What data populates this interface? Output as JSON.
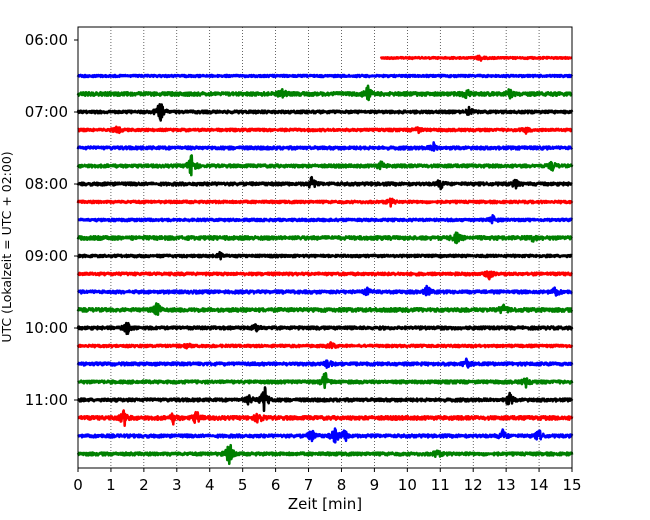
{
  "chart_data": {
    "type": "line",
    "subtype": "helicorder",
    "xlabel": "Zeit  [min]",
    "ylabel": "UTC (Lokalzeit = UTC + 02:00)",
    "xlim": [
      0,
      15
    ],
    "x_ticks": [
      0,
      1,
      2,
      3,
      4,
      5,
      6,
      7,
      8,
      9,
      10,
      11,
      12,
      13,
      14,
      15
    ],
    "x_tick_labels": [
      "0",
      "1",
      "2",
      "3",
      "4",
      "5",
      "6",
      "7",
      "8",
      "9",
      "10",
      "11",
      "12",
      "13",
      "14",
      "15"
    ],
    "y_tick_labels": [
      "06:00",
      "07:00",
      "08:00",
      "09:00",
      "10:00",
      "11:00"
    ],
    "vertical_grid": true,
    "grid_style": "dotted",
    "trace_color_cycle": [
      "#ff0000",
      "#0000ff",
      "#008000",
      "#000000"
    ],
    "trace_interval_minutes": 15,
    "traces": [
      {
        "start": "06:00",
        "color": "#ff0000",
        "x_start": 9.2,
        "x_end": 15,
        "noise": 0.06,
        "events": [
          [
            12.2,
            0.22
          ]
        ]
      },
      {
        "start": "06:15",
        "color": "#0000ff",
        "x_start": 0,
        "x_end": 15,
        "noise": 0.07,
        "events": []
      },
      {
        "start": "06:30",
        "color": "#008000",
        "x_start": 0,
        "x_end": 15,
        "noise": 0.12,
        "events": [
          [
            6.2,
            0.4
          ],
          [
            8.8,
            0.6
          ],
          [
            11.8,
            0.35
          ],
          [
            13.1,
            0.3
          ]
        ]
      },
      {
        "start": "06:45",
        "color": "#000000",
        "x_start": 0,
        "x_end": 15,
        "noise": 0.09,
        "events": [
          [
            2.5,
            1.0
          ],
          [
            11.9,
            0.4
          ]
        ]
      },
      {
        "start": "07:00",
        "color": "#ff0000",
        "x_start": 0,
        "x_end": 15,
        "noise": 0.08,
        "events": [
          [
            1.2,
            0.25
          ],
          [
            10.3,
            0.25
          ],
          [
            13.6,
            0.2
          ]
        ]
      },
      {
        "start": "07:15",
        "color": "#0000ff",
        "x_start": 0,
        "x_end": 15,
        "noise": 0.1,
        "events": [
          [
            10.8,
            0.3
          ]
        ]
      },
      {
        "start": "07:30",
        "color": "#008000",
        "x_start": 0,
        "x_end": 15,
        "noise": 0.1,
        "events": [
          [
            3.45,
            0.9
          ],
          [
            9.2,
            0.3
          ],
          [
            14.4,
            0.3
          ]
        ]
      },
      {
        "start": "07:45",
        "color": "#000000",
        "x_start": 0,
        "x_end": 15,
        "noise": 0.1,
        "events": [
          [
            7.1,
            0.45
          ],
          [
            11.0,
            0.4
          ],
          [
            13.3,
            0.3
          ]
        ]
      },
      {
        "start": "08:00",
        "color": "#ff0000",
        "x_start": 0,
        "x_end": 15,
        "noise": 0.08,
        "events": [
          [
            9.5,
            0.25
          ]
        ]
      },
      {
        "start": "08:15",
        "color": "#0000ff",
        "x_start": 0,
        "x_end": 15,
        "noise": 0.08,
        "events": [
          [
            12.6,
            0.3
          ]
        ]
      },
      {
        "start": "08:30",
        "color": "#008000",
        "x_start": 0,
        "x_end": 15,
        "noise": 0.12,
        "events": [
          [
            11.5,
            0.35
          ],
          [
            13.8,
            0.25
          ]
        ]
      },
      {
        "start": "08:45",
        "color": "#000000",
        "x_start": 0,
        "x_end": 15,
        "noise": 0.08,
        "events": [
          [
            4.3,
            0.25
          ]
        ]
      },
      {
        "start": "09:00",
        "color": "#ff0000",
        "x_start": 0,
        "x_end": 15,
        "noise": 0.09,
        "events": [
          [
            12.5,
            0.35
          ]
        ]
      },
      {
        "start": "09:15",
        "color": "#0000ff",
        "x_start": 0,
        "x_end": 15,
        "noise": 0.1,
        "events": [
          [
            10.6,
            0.45
          ],
          [
            14.5,
            0.35
          ],
          [
            8.8,
            0.25
          ]
        ]
      },
      {
        "start": "09:30",
        "color": "#008000",
        "x_start": 0,
        "x_end": 15,
        "noise": 0.12,
        "events": [
          [
            2.4,
            0.5
          ],
          [
            12.9,
            0.45
          ]
        ]
      },
      {
        "start": "09:45",
        "color": "#000000",
        "x_start": 0,
        "x_end": 15,
        "noise": 0.1,
        "events": [
          [
            1.5,
            0.45
          ],
          [
            5.4,
            0.25
          ]
        ]
      },
      {
        "start": "10:00",
        "color": "#ff0000",
        "x_start": 0,
        "x_end": 15,
        "noise": 0.08,
        "events": [
          [
            3.3,
            0.25
          ],
          [
            7.7,
            0.25
          ]
        ]
      },
      {
        "start": "10:15",
        "color": "#0000ff",
        "x_start": 0,
        "x_end": 15,
        "noise": 0.1,
        "events": [
          [
            7.6,
            0.35
          ],
          [
            11.8,
            0.35
          ]
        ]
      },
      {
        "start": "10:30",
        "color": "#008000",
        "x_start": 0,
        "x_end": 15,
        "noise": 0.1,
        "events": [
          [
            7.5,
            0.7
          ],
          [
            13.6,
            0.3
          ]
        ]
      },
      {
        "start": "10:45",
        "color": "#000000",
        "x_start": 0,
        "x_end": 15,
        "noise": 0.1,
        "events": [
          [
            5.65,
            1.25
          ],
          [
            13.1,
            0.5
          ],
          [
            5.2,
            0.35
          ]
        ]
      },
      {
        "start": "11:00",
        "color": "#ff0000",
        "x_start": 0,
        "x_end": 15,
        "noise": 0.12,
        "events": [
          [
            1.4,
            0.55
          ],
          [
            3.6,
            0.5
          ],
          [
            5.5,
            0.5
          ],
          [
            2.9,
            0.35
          ]
        ]
      },
      {
        "start": "11:15",
        "color": "#0000ff",
        "x_start": 0,
        "x_end": 15,
        "noise": 0.1,
        "events": [
          [
            7.1,
            0.5
          ],
          [
            7.8,
            0.55
          ],
          [
            8.1,
            0.45
          ],
          [
            12.9,
            0.4
          ],
          [
            14.0,
            0.4
          ]
        ]
      },
      {
        "start": "11:30",
        "color": "#008000",
        "x_start": 0,
        "x_end": 15,
        "noise": 0.1,
        "events": [
          [
            4.6,
            0.9
          ],
          [
            10.9,
            0.3
          ]
        ]
      }
    ]
  }
}
